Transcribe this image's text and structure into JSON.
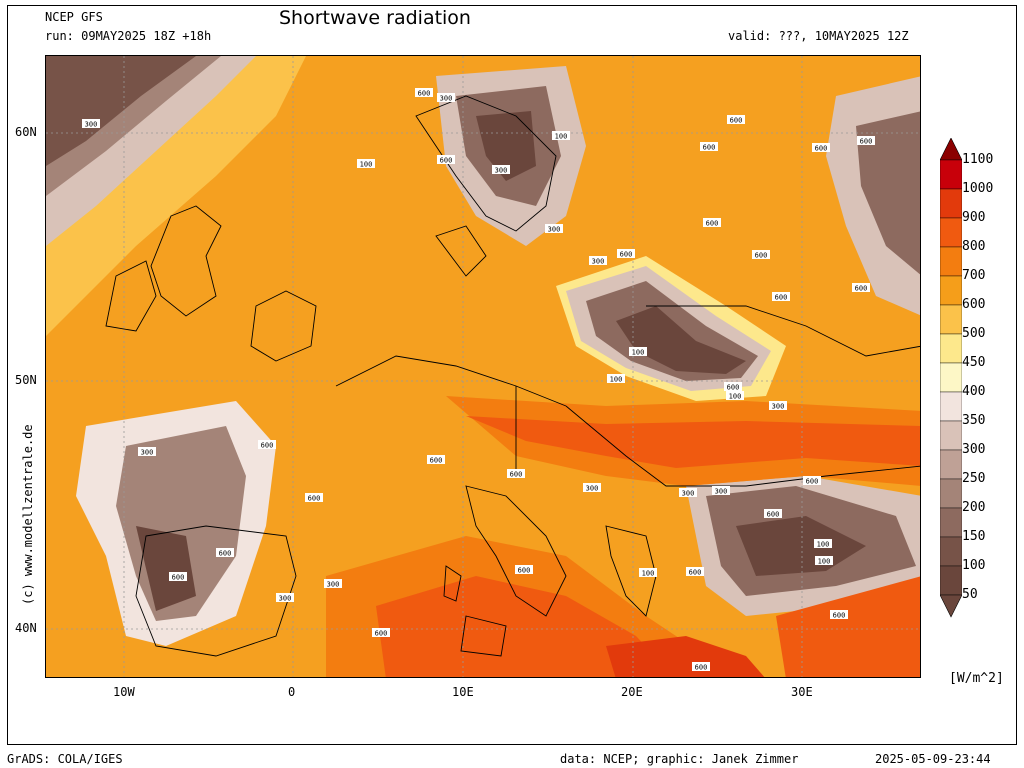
{
  "header": {
    "model": "NCEP GFS",
    "run": "run: 09MAY2025 18Z +18h",
    "title": "Shortwave radiation",
    "valid": "valid: ???, 10MAY2025 12Z"
  },
  "axes": {
    "lat_labels": [
      "60N",
      "50N",
      "40N"
    ],
    "lon_labels": [
      "10W",
      "0",
      "10E",
      "20E",
      "30E"
    ]
  },
  "credit": "(c) www.modellzentrale.de",
  "colorbar": {
    "units": "[W/m^2]",
    "levels": [
      "1100",
      "1000",
      "900",
      "800",
      "700",
      "600",
      "500",
      "450",
      "400",
      "350",
      "300",
      "250",
      "200",
      "150",
      "100",
      "50"
    ],
    "colors": [
      "#8b0000",
      "#c8000a",
      "#e23a0c",
      "#f05a10",
      "#f37d10",
      "#f59e1a",
      "#fbc24a",
      "#fde88c",
      "#fdf7c6",
      "#f2e4de",
      "#d9c2b8",
      "#bfa196",
      "#a48478",
      "#8d6a5f",
      "#775348",
      "#6a463c"
    ]
  },
  "contour_labels": [
    "300",
    "600",
    "300",
    "100",
    "600",
    "100",
    "300",
    "600",
    "600",
    "600",
    "600",
    "300",
    "600",
    "300",
    "600",
    "600",
    "600",
    "600",
    "100",
    "100",
    "600",
    "100",
    "300",
    "600",
    "600",
    "300",
    "600",
    "600",
    "300",
    "300",
    "300",
    "600",
    "600",
    "100",
    "100",
    "600",
    "600",
    "300",
    "100",
    "600",
    "600",
    "300",
    "600",
    "600",
    "600"
  ],
  "footer": {
    "left": "GrADS: COLA/IGES",
    "middle": "data: NCEP; graphic: Janek Zimmer",
    "right": "2025-05-09-23:44"
  }
}
